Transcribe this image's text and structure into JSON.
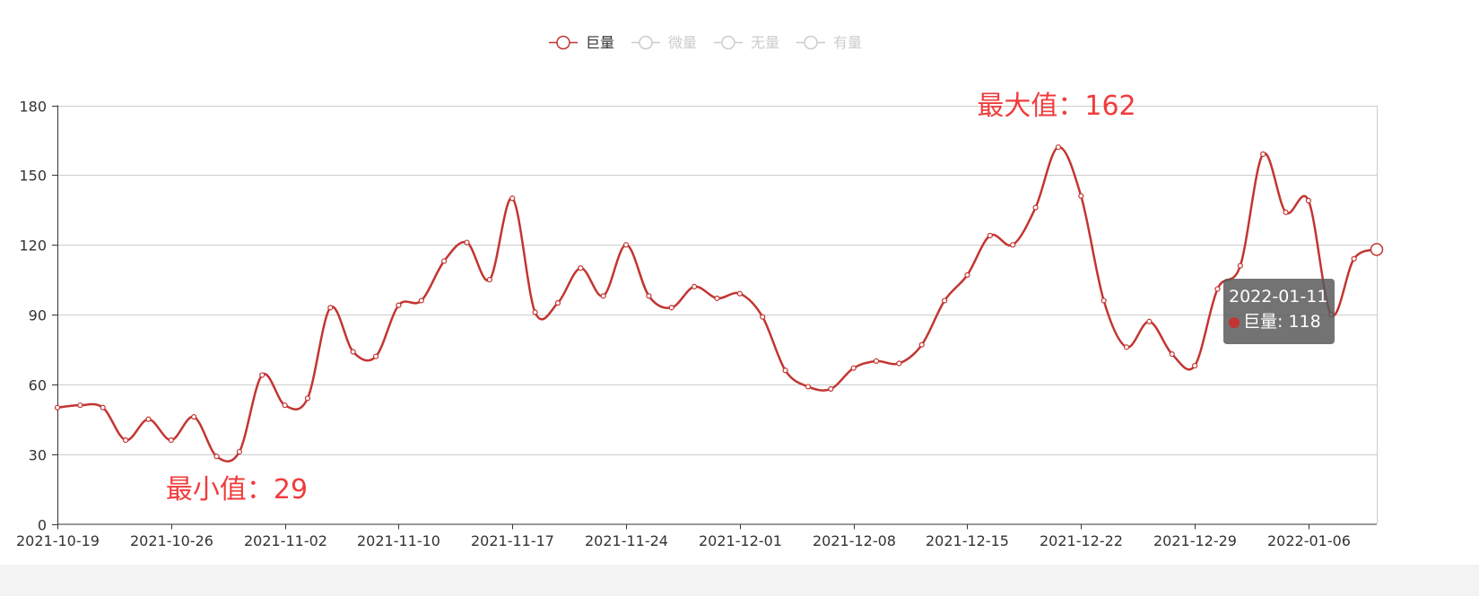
{
  "legend": {
    "items": [
      {
        "name": "巨量",
        "active": true
      },
      {
        "name": "微量",
        "active": false
      },
      {
        "name": "无量",
        "active": false
      },
      {
        "name": "有量",
        "active": false
      }
    ],
    "placement": "top-center"
  },
  "colors": {
    "series": "#c23531",
    "inactive": "#cccccc",
    "markLabel": "#f03c3c",
    "grid": "#cccccc",
    "axis": "#333333"
  },
  "markers": {
    "max_label": "最大值：162",
    "min_label": "最小值：29"
  },
  "tooltip": {
    "date": "2022-01-11",
    "series": "巨量",
    "value": "118",
    "text": "巨量: 118"
  },
  "chart_data": {
    "type": "line",
    "smooth": true,
    "title": "",
    "xlabel": "",
    "ylabel": "",
    "ylim": [
      0,
      180
    ],
    "yticks": [
      0,
      30,
      60,
      90,
      120,
      150,
      180
    ],
    "grid": true,
    "x_tick_labels": [
      "2021-10-19",
      "2021-10-26",
      "2021-11-02",
      "2021-11-10",
      "2021-11-17",
      "2021-11-24",
      "2021-12-01",
      "2021-12-08",
      "2021-12-15",
      "2021-12-22",
      "2021-12-29",
      "2022-01-06"
    ],
    "series": [
      {
        "name": "巨量",
        "values": [
          50,
          51,
          50,
          36,
          45,
          36,
          46,
          29,
          31,
          64,
          51,
          54,
          93,
          74,
          72,
          94,
          96,
          113,
          121,
          105,
          140,
          91,
          95,
          110,
          98,
          120,
          98,
          93,
          102,
          97,
          99,
          89,
          66,
          59,
          58,
          67,
          70,
          69,
          77,
          96,
          107,
          124,
          120,
          136,
          162,
          141,
          96,
          76,
          87,
          73,
          68,
          101,
          111,
          159,
          134,
          139,
          90,
          114,
          118
        ]
      }
    ]
  }
}
